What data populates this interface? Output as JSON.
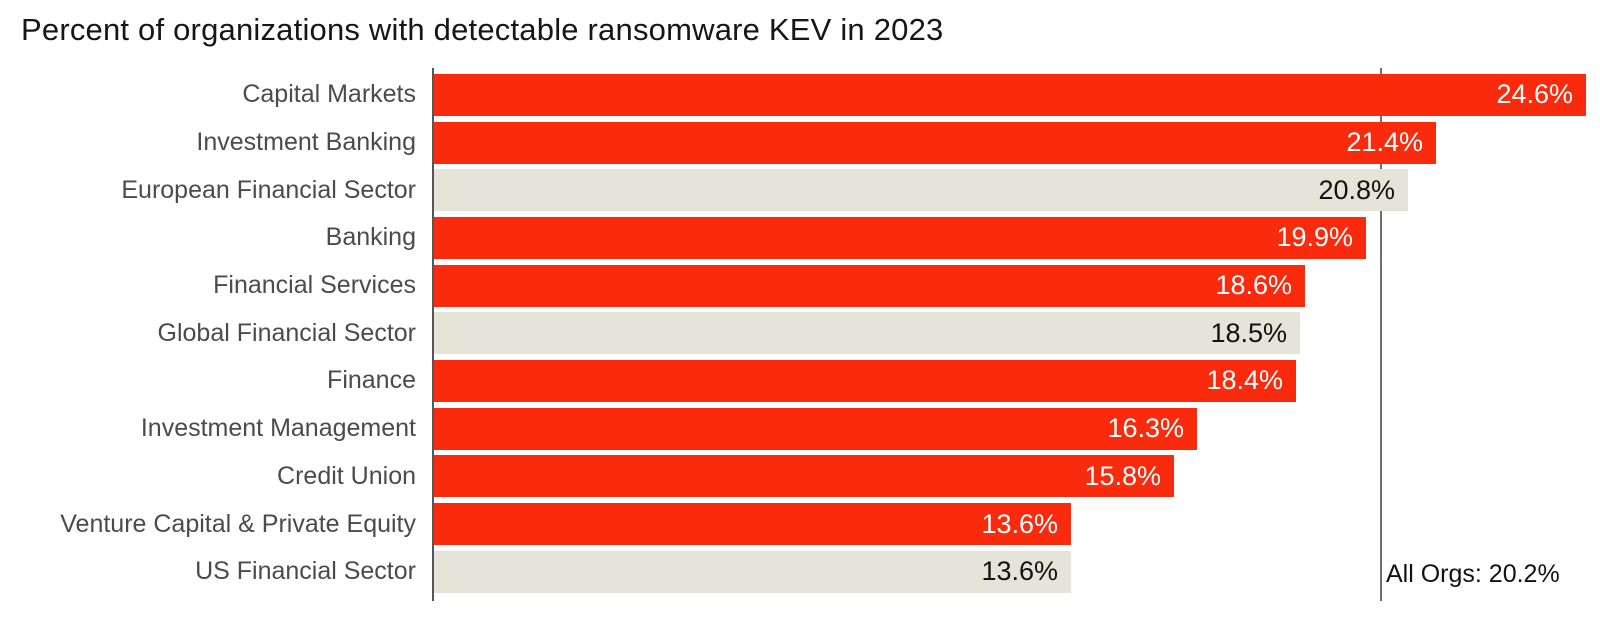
{
  "chart_data": {
    "type": "bar",
    "orientation": "horizontal",
    "title": "Percent of organizations with detectable ransomware KEV in 2023",
    "categories": [
      "Capital Markets",
      "Investment Banking",
      "European Financial Sector",
      "Banking",
      "Financial Services",
      "Global Financial Sector",
      "Finance",
      "Investment Management",
      "Credit Union",
      "Venture Capital & Private Equity",
      "US Financial Sector"
    ],
    "values": [
      24.6,
      21.4,
      20.8,
      19.9,
      18.6,
      18.5,
      18.4,
      16.3,
      15.8,
      13.6,
      13.6
    ],
    "value_labels": [
      "24.6%",
      "21.4%",
      "20.8%",
      "19.9%",
      "18.6%",
      "18.5%",
      "18.4%",
      "16.3%",
      "15.8%",
      "13.6%",
      "13.6%"
    ],
    "bar_styles": [
      "red",
      "red",
      "beige",
      "red",
      "red",
      "beige",
      "red",
      "red",
      "red",
      "red",
      "beige"
    ],
    "xlim": [
      0,
      24.6
    ],
    "grid": false,
    "legend": false,
    "reference_line": {
      "value": 20.2,
      "label": "All Orgs: 20.2%"
    },
    "colors": {
      "red_bar": "#fa2a0c",
      "beige_bar": "#e5e4d9",
      "value_text_on_red": "#ffffff",
      "value_text_on_beige": "#121212",
      "axis_line": "#55555a",
      "reference_line": "#6f6f72",
      "category_text": "#4b4b4d",
      "title_text": "#161616",
      "background": "#ffffff"
    }
  }
}
